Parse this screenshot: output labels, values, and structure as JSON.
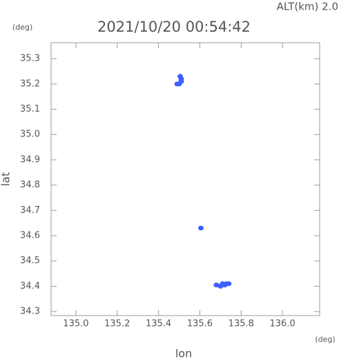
{
  "chart_data": {
    "type": "scatter",
    "title": "2021/10/20 00:54:42",
    "altitude_label": "ALT(km) 2.0",
    "y_unit": "(deg)",
    "x_unit": "(deg)",
    "xlabel": "lon",
    "ylabel": "lat",
    "color": "#3f5fff",
    "x": [
      135.49,
      135.5,
      135.51,
      135.51,
      135.505,
      135.605,
      135.68,
      135.7,
      135.71,
      135.72,
      135.73,
      135.74
    ],
    "values": [
      35.2,
      35.2,
      35.21,
      35.22,
      35.23,
      34.63,
      34.405,
      34.4,
      34.41,
      34.405,
      34.41,
      34.41
    ],
    "xlim": [
      134.88,
      136.18
    ],
    "ylim": [
      34.284,
      35.363
    ],
    "xticks": [
      {
        "value": 135,
        "label": "135.0"
      },
      135.2,
      135.4,
      135.6,
      135.8,
      {
        "value": 136,
        "label": "136.0"
      }
    ],
    "yticks": [
      34.3,
      34.4,
      34.5,
      34.6,
      34.7,
      34.8,
      34.9,
      {
        "value": 35,
        "label": "35.0"
      },
      35.1,
      35.2,
      35.3
    ]
  }
}
